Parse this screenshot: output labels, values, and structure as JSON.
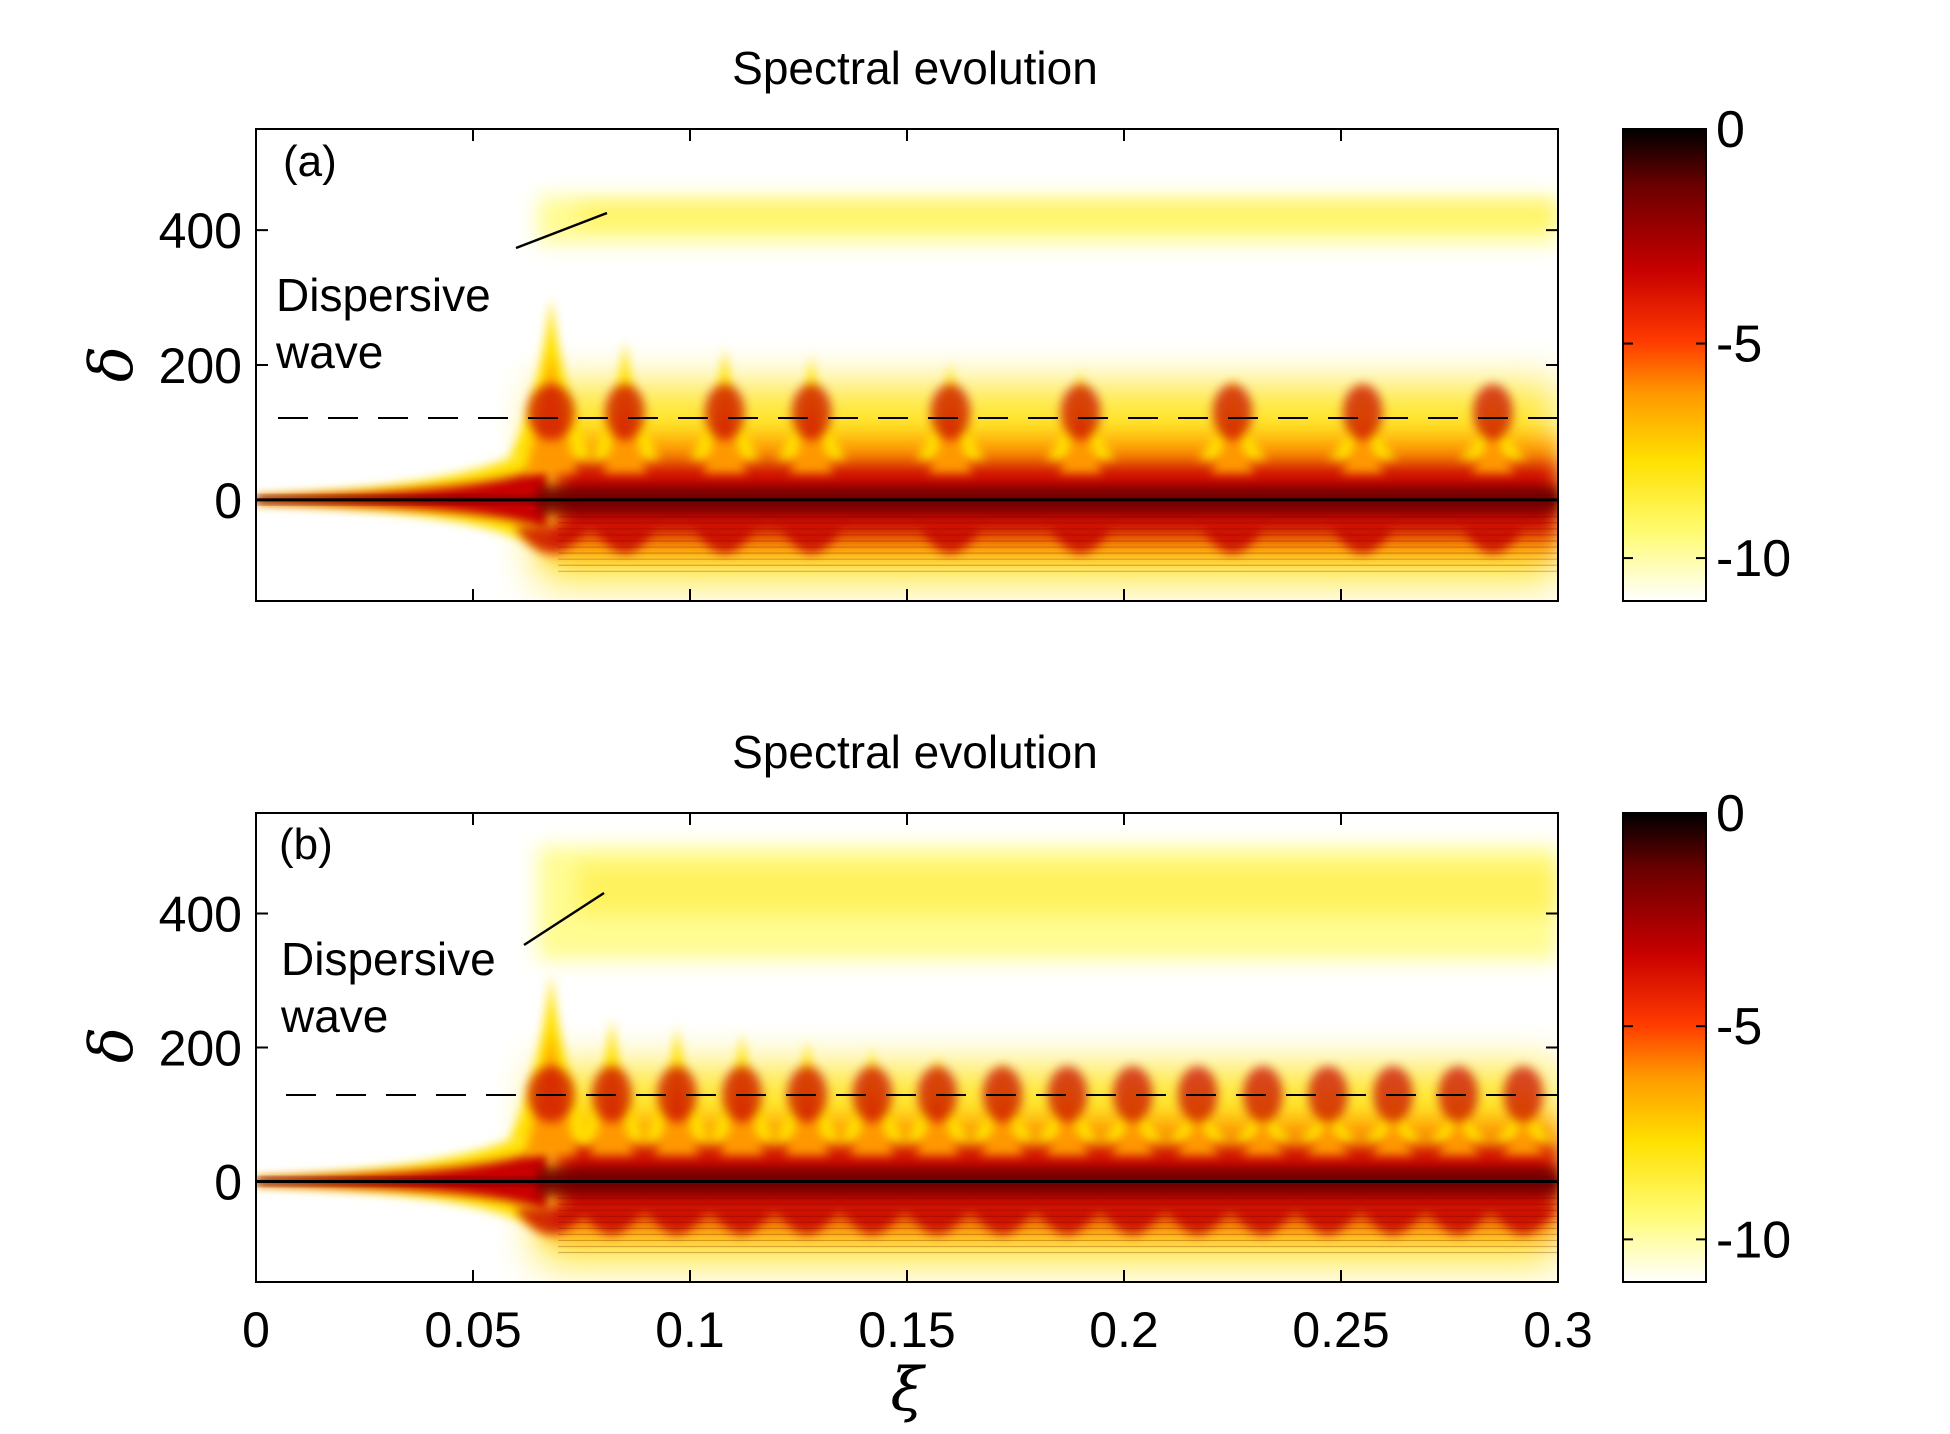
{
  "figure": {
    "colormap": {
      "name": "hot (inverted)",
      "stops": [
        "#000000",
        "#6b0000",
        "#c80000",
        "#ff3a00",
        "#ff9800",
        "#ffe000",
        "#fffb6e",
        "#ffffff"
      ]
    },
    "dashed_line_color": "#000000"
  },
  "chart_data": [
    {
      "type": "heatmap",
      "panel_label": "(a)",
      "title": "Spectral evolution",
      "xlabel": "",
      "ylabel": "δ",
      "xlim": [
        0,
        0.3
      ],
      "ylim": [
        -150,
        550
      ],
      "x_ticks": [
        0,
        0.05,
        0.1,
        0.15,
        0.2,
        0.25,
        0.3
      ],
      "x_tick_labels": [],
      "y_ticks": [
        0,
        200,
        400
      ],
      "y_tick_labels": [
        "0",
        "200",
        "400"
      ],
      "colorbar": {
        "range": [
          -11,
          0
        ],
        "ticks": [
          0,
          -5,
          -10
        ],
        "tick_labels": [
          "0",
          "-5",
          "-10"
        ]
      },
      "dashed_line_delta": 118,
      "annotation": {
        "text_line1": "Dispersive",
        "text_line2": "wave",
        "arrow_to": [
          0.082,
          420
        ]
      },
      "features": {
        "onset_xi": 0.065,
        "first_peak_xi": 0.068,
        "first_peak_delta": 300,
        "oscillation_peaks_xi": [
          0.068,
          0.085,
          0.108,
          0.128,
          0.16,
          0.19,
          0.225,
          0.255,
          0.285
        ],
        "dispersive_band_delta": [
          380,
          450
        ]
      }
    },
    {
      "type": "heatmap",
      "panel_label": "(b)",
      "title": "Spectral evolution",
      "xlabel": "ξ",
      "ylabel": "δ",
      "xlim": [
        0,
        0.3
      ],
      "ylim": [
        -150,
        550
      ],
      "x_ticks": [
        0,
        0.05,
        0.1,
        0.15,
        0.2,
        0.25,
        0.3
      ],
      "x_tick_labels": [
        "0",
        "0.05",
        "0.1",
        "0.15",
        "0.2",
        "0.25",
        "0.3"
      ],
      "y_ticks": [
        0,
        200,
        400
      ],
      "y_tick_labels": [
        "0",
        "200",
        "400"
      ],
      "colorbar": {
        "range": [
          -11,
          0
        ],
        "ticks": [
          0,
          -5,
          -10
        ],
        "tick_labels": [
          "0",
          "-5",
          "-10"
        ]
      },
      "dashed_line_delta": 125,
      "annotation": {
        "text_line1": "Dispersive",
        "text_line2": "wave",
        "arrow_to": [
          0.081,
          420
        ]
      },
      "features": {
        "onset_xi": 0.065,
        "first_peak_xi": 0.068,
        "first_peak_delta": 310,
        "oscillation_peaks_xi": [
          0.068,
          0.082,
          0.097,
          0.112,
          0.127,
          0.142,
          0.157,
          0.172,
          0.187,
          0.202,
          0.217,
          0.232,
          0.247,
          0.262,
          0.277,
          0.292
        ],
        "dispersive_band_delta": [
          330,
          500
        ]
      }
    }
  ]
}
